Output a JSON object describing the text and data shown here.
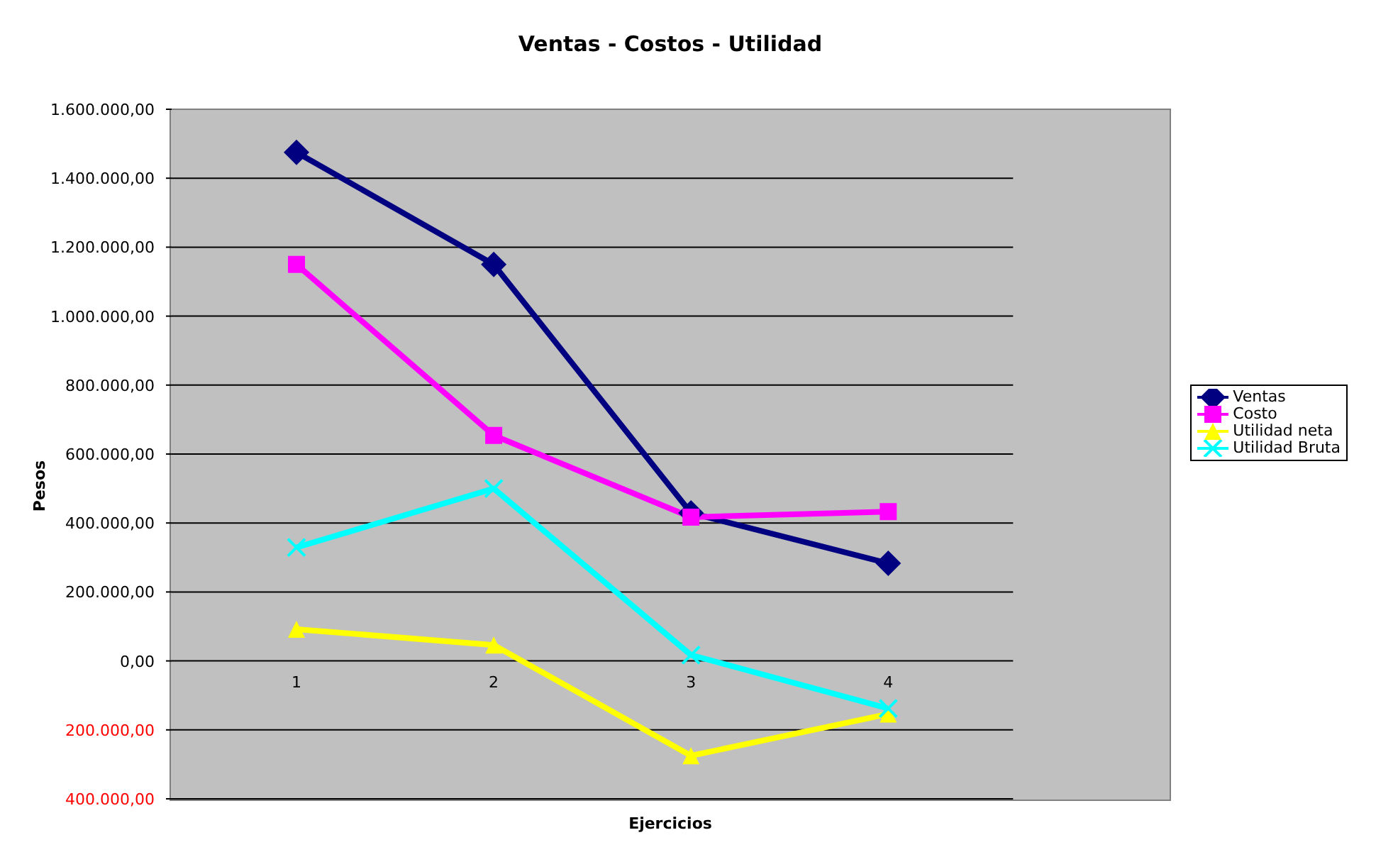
{
  "chart_data": {
    "type": "line",
    "title": "Ventas - Costos - Utilidad",
    "xlabel": "Ejercicios",
    "ylabel": "Pesos",
    "categories": [
      "1",
      "2",
      "3",
      "4"
    ],
    "series": [
      {
        "name": "Ventas",
        "color": "#000080",
        "marker": "diamond",
        "values": [
          1475000,
          1150000,
          429000,
          283000
        ]
      },
      {
        "name": "Costo",
        "color": "#ff00ff",
        "marker": "square",
        "values": [
          1150000,
          654000,
          417000,
          433000
        ]
      },
      {
        "name": "Utilidad neta",
        "color": "#ffff00",
        "marker": "triangle",
        "values": [
          92000,
          46000,
          -275000,
          -154000
        ]
      },
      {
        "name": "Utilidad Bruta",
        "color": "#00ffff",
        "marker": "cross",
        "values": [
          329000,
          500000,
          17000,
          -138000
        ]
      }
    ],
    "ylim": [
      -400000,
      1600000
    ],
    "yticks": [
      {
        "value": -400000,
        "label": "400.000,00"
      },
      {
        "value": -200000,
        "label": "200.000,00"
      },
      {
        "value": 0,
        "label": "0,00"
      },
      {
        "value": 200000,
        "label": "200.000,00"
      },
      {
        "value": 400000,
        "label": "400.000,00"
      },
      {
        "value": 600000,
        "label": "600.000,00"
      },
      {
        "value": 800000,
        "label": "800.000,00"
      },
      {
        "value": 1000000,
        "label": "1.000.000,00"
      },
      {
        "value": 1200000,
        "label": "1.200.000,00"
      },
      {
        "value": 1400000,
        "label": "1.400.000,00"
      },
      {
        "value": 1600000,
        "label": "1.600.000,00"
      }
    ],
    "grid": "y",
    "legend": "right",
    "line_style": "solid"
  }
}
